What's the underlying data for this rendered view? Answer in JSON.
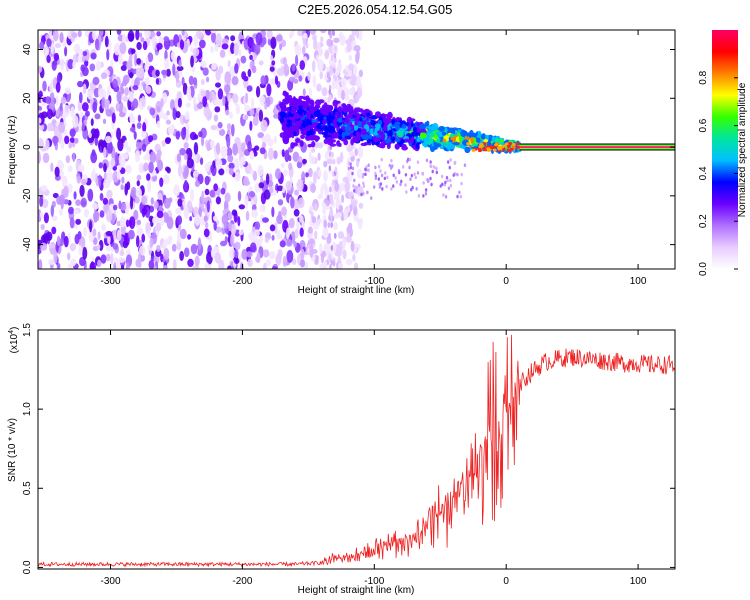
{
  "title": "C2E5.2026.054.12.54.G05",
  "chart_data": [
    {
      "type": "heatmap",
      "title": "C2E5.2026.054.12.54.G05",
      "xlabel": "Height of straight line (km)",
      "ylabel": "Frequency (Hz)",
      "xlim": [
        -355,
        128
      ],
      "ylim": [
        -50,
        48
      ],
      "xticks": [
        -300,
        -200,
        -100,
        0,
        100
      ],
      "yticks": [
        -40,
        -20,
        0,
        20,
        40
      ],
      "colorbar": {
        "label": "Normalized spectral amplitude",
        "ticks": [
          0.0,
          0.2,
          0.4,
          0.6,
          0.8
        ],
        "range": [
          0,
          1
        ],
        "colors": [
          "#ffffff",
          "#e8ccff",
          "#b070ff",
          "#6a00ff",
          "#0000ff",
          "#00bfff",
          "#00e5a0",
          "#33ff00",
          "#ffff00",
          "#ff8000",
          "#ff0000",
          "#ff0066"
        ]
      },
      "structure": {
        "noise_region_x": [
          -355,
          -130
        ],
        "transition_x": [
          -170,
          10
        ],
        "ridge_freq_hz": 0,
        "ridge_start_x": -170,
        "ridge_start_freq_hz": 12,
        "steady_line_x": [
          10,
          128
        ]
      }
    },
    {
      "type": "line",
      "xlabel": "Height of straight line (km)",
      "ylabel": "SNR (10 * v/v)",
      "multiplier_label": "(x10",
      "multiplier_exponent": "4",
      "multiplier_close": ")",
      "xlim": [
        -355,
        128
      ],
      "ylim": [
        -0.01,
        1.5
      ],
      "xticks": [
        -300,
        -200,
        -100,
        0,
        100
      ],
      "yticks": [
        "0.0",
        "0.5",
        "1.0",
        "1.5"
      ],
      "ytick_values": [
        0.0,
        0.5,
        1.0,
        1.5
      ],
      "series": [
        {
          "name": "SNR",
          "color": "#ee2222",
          "x": [
            -355,
            -300,
            -250,
            -200,
            -160,
            -140,
            -130,
            -120,
            -110,
            -100,
            -90,
            -80,
            -70,
            -60,
            -50,
            -40,
            -30,
            -25,
            -20,
            -15,
            -10,
            -5,
            0,
            5,
            10,
            15,
            20,
            25,
            30,
            40,
            50,
            60,
            70,
            80,
            90,
            100,
            110,
            128
          ],
          "values": [
            0.02,
            0.02,
            0.02,
            0.02,
            0.02,
            0.03,
            0.06,
            0.07,
            0.09,
            0.12,
            0.15,
            0.18,
            0.21,
            0.27,
            0.35,
            0.45,
            0.55,
            0.62,
            0.72,
            0.82,
            0.92,
            1.0,
            1.05,
            1.1,
            1.15,
            1.2,
            1.24,
            1.27,
            1.3,
            1.32,
            1.33,
            1.32,
            1.31,
            1.3,
            1.29,
            1.29,
            1.28,
            1.28
          ]
        }
      ]
    }
  ]
}
